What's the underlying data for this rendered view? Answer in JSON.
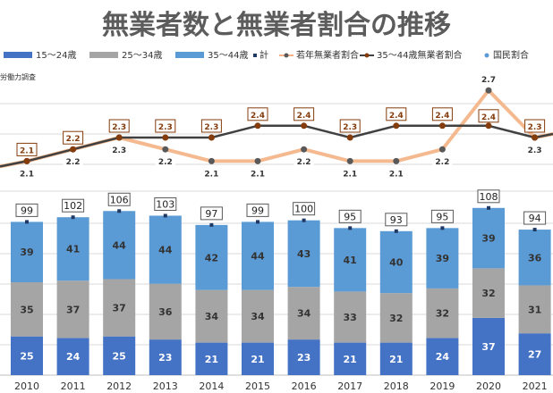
{
  "title": "無業者数と無業者割合の推移",
  "source_note": "労働力調査",
  "colors": {
    "age_15_24": "#4472c4",
    "age_25_34": "#a5a5a5",
    "age_35_44": "#5b9bd5",
    "total_marker": "#1f3864",
    "youth_ratio": "#f4b183",
    "ratio_35_44": "#404040",
    "national_ratio": "#5b9bd5",
    "label_border_dark": "#843c0c"
  },
  "chart_data": {
    "type": "bar",
    "stacked": true,
    "categories": [
      "2010",
      "2011",
      "2012",
      "2013",
      "2014",
      "2015",
      "2016",
      "2017",
      "2018",
      "2019",
      "2020",
      "2021"
    ],
    "series": [
      {
        "name": "15～24歳",
        "values": [
          25,
          24,
          25,
          23,
          21,
          21,
          23,
          21,
          21,
          24,
          37,
          27
        ]
      },
      {
        "name": "25～34歳",
        "values": [
          35,
          37,
          37,
          36,
          34,
          34,
          34,
          33,
          32,
          32,
          32,
          31
        ]
      },
      {
        "name": "35～44歳",
        "values": [
          39,
          41,
          44,
          44,
          42,
          44,
          43,
          41,
          40,
          39,
          39,
          36
        ]
      }
    ],
    "totals": {
      "name": "計",
      "values": [
        99,
        102,
        106,
        103,
        97,
        99,
        100,
        95,
        93,
        95,
        108,
        94
      ]
    },
    "lines": [
      {
        "name": "若年無業者割合",
        "values": [
          2.1,
          2.2,
          2.3,
          2.2,
          2.1,
          2.1,
          2.2,
          2.1,
          2.1,
          2.2,
          2.7,
          2.3
        ]
      },
      {
        "name": "35～44歳無業者割合",
        "values": [
          2.1,
          2.2,
          2.3,
          2.3,
          2.3,
          2.4,
          2.4,
          2.3,
          2.4,
          2.4,
          2.4,
          2.3
        ]
      },
      {
        "name": "国民割合",
        "values": []
      }
    ],
    "bar_ylim": [
      0,
      120
    ],
    "line_ylim": [
      1.8,
      2.8
    ],
    "legend_position": "top",
    "grid": true
  }
}
